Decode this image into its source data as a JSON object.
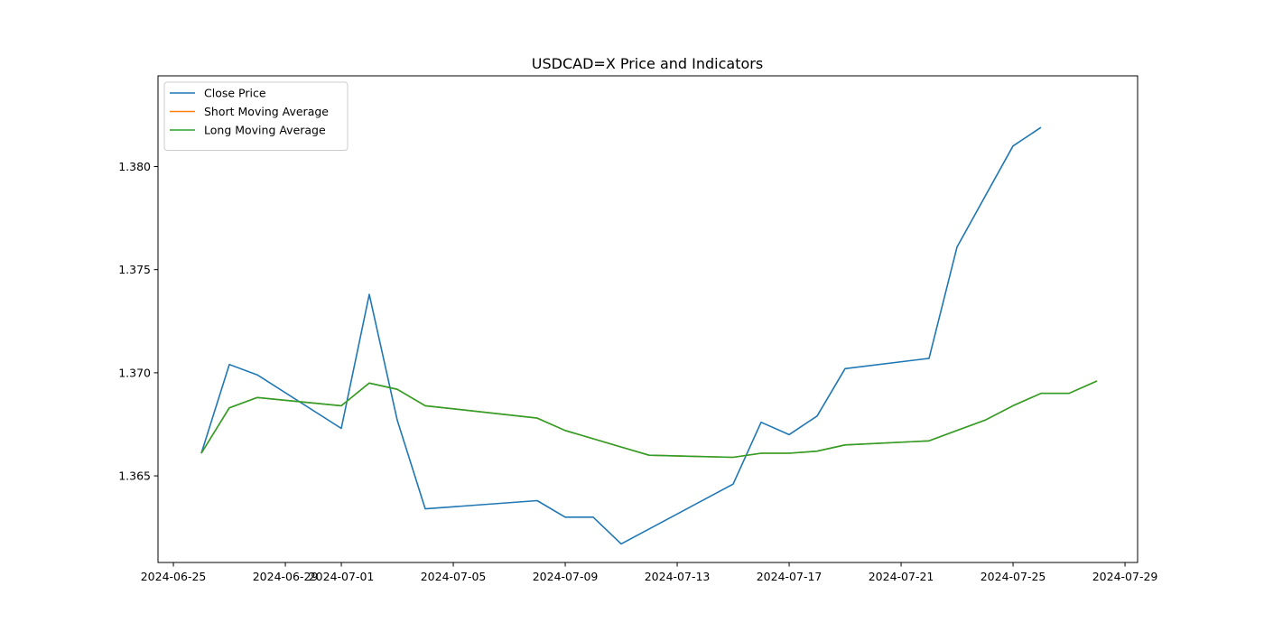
{
  "chart_data": {
    "type": "line",
    "title": "USDCAD=X Price and Indicators",
    "xlabel": "",
    "ylabel": "",
    "xlim": [
      "2024-06-24",
      "2024-07-29"
    ],
    "ylim": [
      1.3608,
      1.3844
    ],
    "grid": false,
    "legend_position": "top-left",
    "x_ticks": [
      "2024-06-25",
      "2024-06-29",
      "2024-07-01",
      "2024-07-05",
      "2024-07-09",
      "2024-07-13",
      "2024-07-17",
      "2024-07-21",
      "2024-07-25",
      "2024-07-29"
    ],
    "y_ticks": [
      "1.365",
      "1.370",
      "1.375",
      "1.380"
    ],
    "series": [
      {
        "name": "Close Price",
        "color": "#1f77b4",
        "points": [
          [
            "2024-06-26",
            1.3661
          ],
          [
            "2024-06-27",
            1.3704
          ],
          [
            "2024-06-28",
            1.3699
          ],
          [
            "2024-07-01",
            1.3673
          ],
          [
            "2024-07-02",
            1.3738
          ],
          [
            "2024-07-03",
            1.3677
          ],
          [
            "2024-07-04",
            1.3634
          ],
          [
            "2024-07-08",
            1.3638
          ],
          [
            "2024-07-09",
            1.363
          ],
          [
            "2024-07-10",
            1.363
          ],
          [
            "2024-07-11",
            1.3617
          ],
          [
            "2024-07-15",
            1.3646
          ],
          [
            "2024-07-16",
            1.3676
          ],
          [
            "2024-07-17",
            1.367
          ],
          [
            "2024-07-18",
            1.3679
          ],
          [
            "2024-07-19",
            1.3702
          ],
          [
            "2024-07-22",
            1.3707
          ],
          [
            "2024-07-23",
            1.3761
          ],
          [
            "2024-07-25",
            1.381
          ],
          [
            "2024-07-26",
            1.3819
          ]
        ]
      },
      {
        "name": "Short Moving Average",
        "color": "#ff7f0e",
        "points": [
          [
            "2024-06-26",
            1.3661
          ],
          [
            "2024-06-27",
            1.3683
          ],
          [
            "2024-06-28",
            1.3688
          ],
          [
            "2024-07-01",
            1.3684
          ],
          [
            "2024-07-02",
            1.3695
          ],
          [
            "2024-07-03",
            1.3692
          ],
          [
            "2024-07-04",
            1.3684
          ],
          [
            "2024-07-08",
            1.3678
          ],
          [
            "2024-07-09",
            1.3672
          ],
          [
            "2024-07-11",
            1.3664
          ],
          [
            "2024-07-12",
            1.366
          ],
          [
            "2024-07-15",
            1.3659
          ],
          [
            "2024-07-16",
            1.3661
          ],
          [
            "2024-07-17",
            1.3661
          ],
          [
            "2024-07-18",
            1.3662
          ],
          [
            "2024-07-19",
            1.3665
          ],
          [
            "2024-07-22",
            1.3667
          ],
          [
            "2024-07-23",
            1.3672
          ],
          [
            "2024-07-24",
            1.3677
          ],
          [
            "2024-07-25",
            1.3684
          ],
          [
            "2024-07-26",
            1.369
          ],
          [
            "2024-07-27",
            1.369
          ],
          [
            "2024-07-28",
            1.3696
          ]
        ]
      },
      {
        "name": "Long Moving Average",
        "color": "#2ca02c",
        "points": [
          [
            "2024-06-26",
            1.3661
          ],
          [
            "2024-06-27",
            1.3683
          ],
          [
            "2024-06-28",
            1.3688
          ],
          [
            "2024-07-01",
            1.3684
          ],
          [
            "2024-07-02",
            1.3695
          ],
          [
            "2024-07-03",
            1.3692
          ],
          [
            "2024-07-04",
            1.3684
          ],
          [
            "2024-07-08",
            1.3678
          ],
          [
            "2024-07-09",
            1.3672
          ],
          [
            "2024-07-11",
            1.3664
          ],
          [
            "2024-07-12",
            1.366
          ],
          [
            "2024-07-15",
            1.3659
          ],
          [
            "2024-07-16",
            1.3661
          ],
          [
            "2024-07-17",
            1.3661
          ],
          [
            "2024-07-18",
            1.3662
          ],
          [
            "2024-07-19",
            1.3665
          ],
          [
            "2024-07-22",
            1.3667
          ],
          [
            "2024-07-23",
            1.3672
          ],
          [
            "2024-07-24",
            1.3677
          ],
          [
            "2024-07-25",
            1.3684
          ],
          [
            "2024-07-26",
            1.369
          ],
          [
            "2024-07-27",
            1.369
          ],
          [
            "2024-07-28",
            1.3696
          ]
        ]
      }
    ]
  }
}
